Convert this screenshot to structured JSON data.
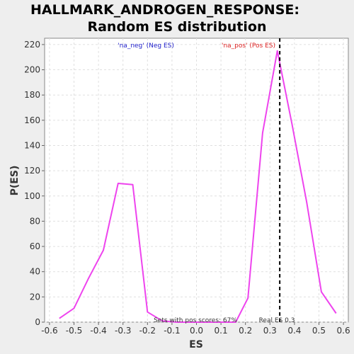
{
  "chart_data": {
    "type": "line",
    "title_lines": [
      "HALLMARK_ANDROGEN_RESPONSE:",
      "Random ES distribution"
    ],
    "xlabel": "ES",
    "ylabel": "P(ES)",
    "xlim": [
      -0.62,
      0.62
    ],
    "ylim": [
      0,
      225
    ],
    "x_ticks": [
      -0.6,
      -0.5,
      -0.4,
      -0.3,
      -0.2,
      -0.1,
      0.0,
      0.1,
      0.2,
      0.3,
      0.4,
      0.5,
      0.6
    ],
    "x_tick_labels": [
      "-0.6",
      "-0.5",
      "-0.4",
      "-0.3",
      "-0.2",
      "-0.1",
      "0.0",
      "0.1",
      "0.2",
      "0.3",
      "0.4",
      "0.5",
      "0.6"
    ],
    "y_ticks": [
      0,
      20,
      40,
      60,
      80,
      100,
      120,
      140,
      160,
      180,
      200,
      220
    ],
    "y_tick_labels": [
      "0",
      "20",
      "40",
      "60",
      "80",
      "100",
      "120",
      "140",
      "160",
      "180",
      "200",
      "220"
    ],
    "grid": true,
    "series": [
      {
        "color": "#ee44ee",
        "x": [
          -0.56,
          -0.5,
          -0.44,
          -0.38,
          -0.32,
          -0.26,
          -0.2,
          -0.14,
          -0.08,
          -0.02,
          0.04,
          0.1,
          0.16,
          0.21,
          0.27,
          0.33,
          0.39,
          0.45,
          0.51,
          0.57
        ],
        "y": [
          3,
          11,
          35,
          57,
          110,
          109,
          8,
          1,
          0,
          0,
          0,
          0,
          0,
          19,
          150,
          215,
          157,
          95,
          24,
          7
        ]
      }
    ],
    "real_es": 0.34,
    "annotations": {
      "neg_label": "'na_neg' (Neg ES)",
      "pos_label": "'na_pos' (Pos ES)",
      "neg_color": "#2222cc",
      "pos_color": "#dd2222",
      "pos_scores_text": "Sets with pos scores: 67%",
      "real_es_text": "Real ES 0.3"
    }
  }
}
